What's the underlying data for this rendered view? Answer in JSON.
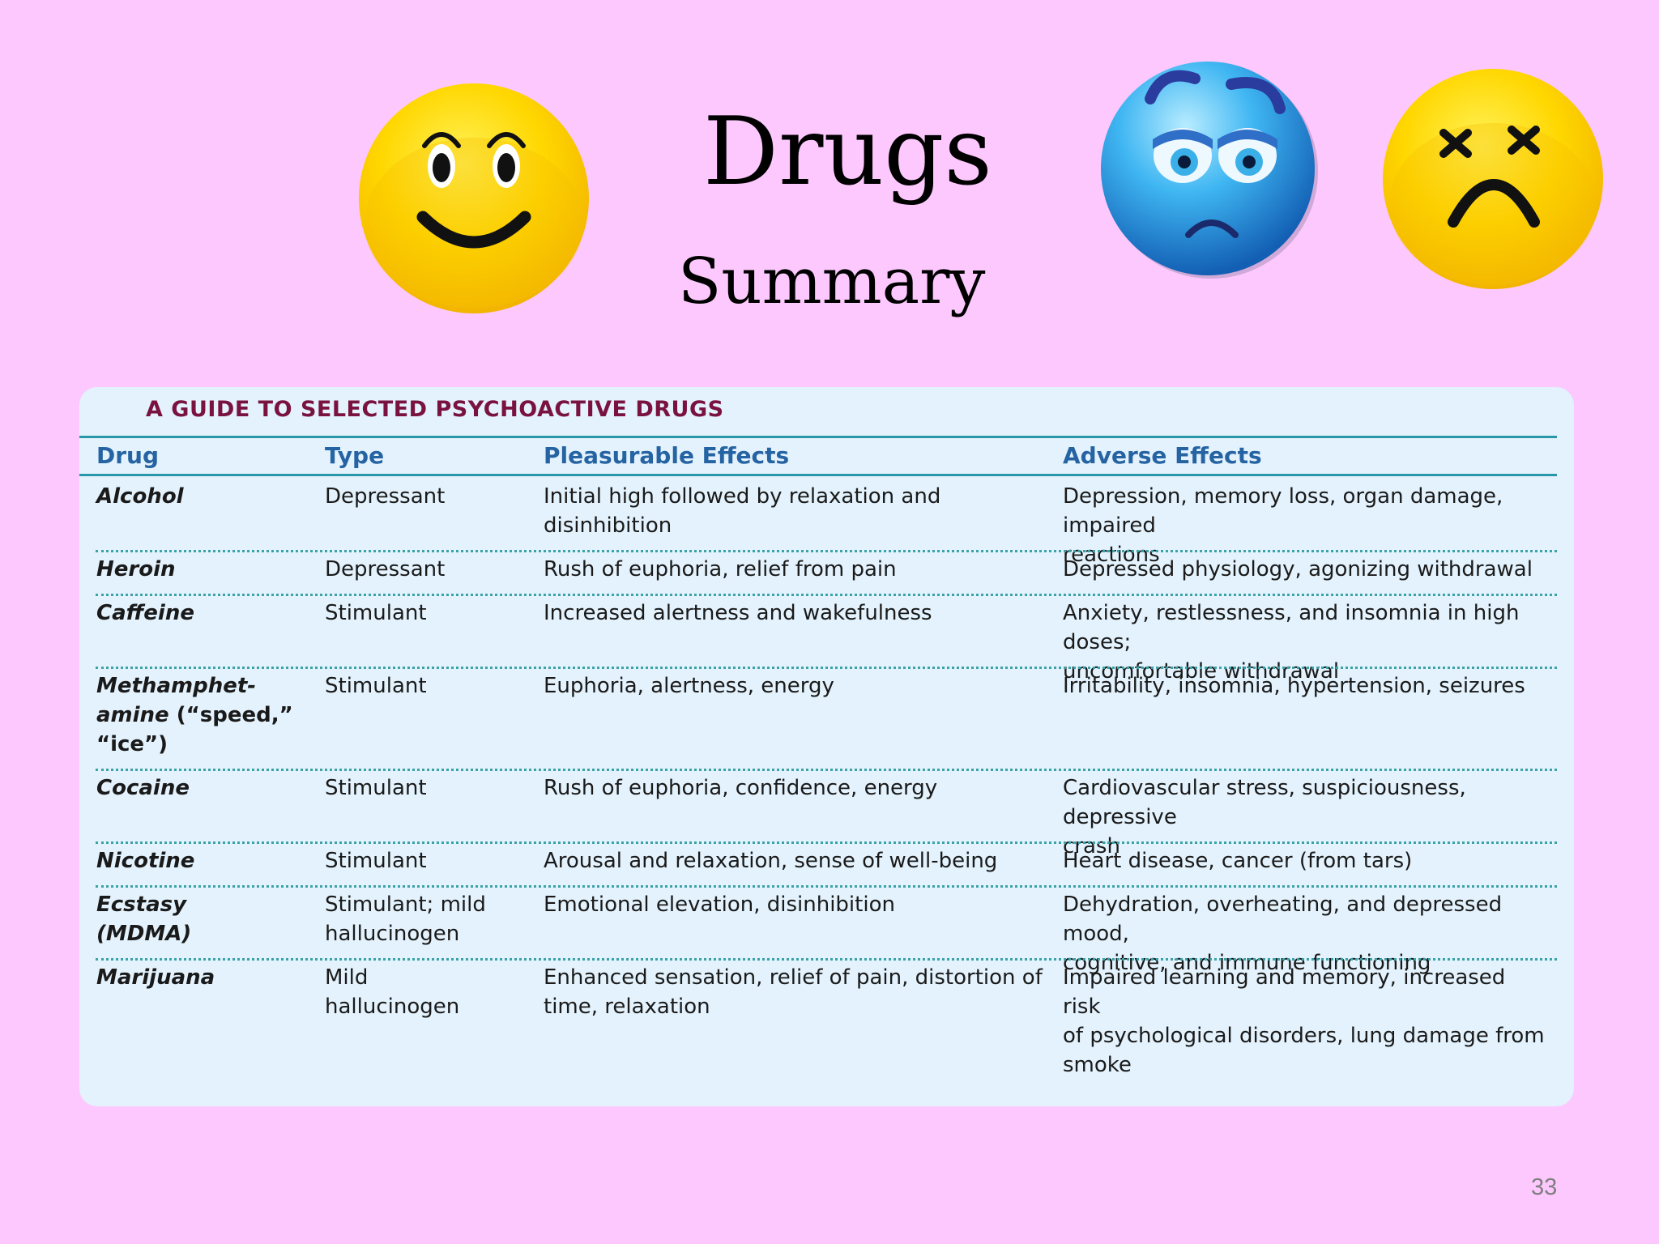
{
  "slide": {
    "title": "Drugs",
    "subtitle": "Summary",
    "page_number": "33"
  },
  "icons": [
    "smiling-face-icon",
    "sick-blue-face-icon",
    "dead-x-eyes-face-icon"
  ],
  "colors": {
    "background": "#fdc8fd",
    "table_background": "#e3f2fc",
    "heading": "#7a1240",
    "column_header": "#2563a3",
    "rule": "#2a97a8"
  },
  "guide": {
    "heading": "A GUIDE TO SELECTED PSYCHOACTIVE DRUGS",
    "columns": [
      "Drug",
      "Type",
      "Pleasurable Effects",
      "Adverse Effects"
    ],
    "rows": [
      {
        "drug_lines": [
          "Alcohol"
        ],
        "type_lines": [
          "Depressant"
        ],
        "pleasurable_lines": [
          "Initial high followed by relaxation and",
          "disinhibition"
        ],
        "adverse_lines": [
          "Depression, memory loss, organ damage, impaired",
          "reactions"
        ]
      },
      {
        "drug_lines": [
          "Heroin"
        ],
        "type_lines": [
          "Depressant"
        ],
        "pleasurable_lines": [
          "Rush of euphoria, relief from pain"
        ],
        "adverse_lines": [
          "Depressed physiology, agonizing withdrawal"
        ]
      },
      {
        "drug_lines": [
          "Caffeine"
        ],
        "type_lines": [
          "Stimulant"
        ],
        "pleasurable_lines": [
          "Increased alertness and wakefulness"
        ],
        "adverse_lines": [
          "Anxiety, restlessness, and insomnia in high doses;",
          "uncomfortable withdrawal"
        ]
      },
      {
        "drug_lines": [
          "Methamphet-",
          "amine",
          "(“speed,”",
          "“ice”)"
        ],
        "type_lines": [
          "Stimulant"
        ],
        "pleasurable_lines": [
          "Euphoria, alertness, energy"
        ],
        "adverse_lines": [
          "Irritability, insomnia, hypertension, seizures"
        ]
      },
      {
        "drug_lines": [
          "Cocaine"
        ],
        "type_lines": [
          "Stimulant"
        ],
        "pleasurable_lines": [
          "Rush of euphoria, confidence, energy"
        ],
        "adverse_lines": [
          "Cardiovascular stress, suspiciousness, depressive",
          "crash"
        ]
      },
      {
        "drug_lines": [
          "Nicotine"
        ],
        "type_lines": [
          "Stimulant"
        ],
        "pleasurable_lines": [
          "Arousal and relaxation, sense of well-being"
        ],
        "adverse_lines": [
          "Heart disease, cancer (from tars)"
        ]
      },
      {
        "drug_lines": [
          "Ecstasy",
          "(MDMA)"
        ],
        "type_lines": [
          "Stimulant; mild",
          "hallucinogen"
        ],
        "pleasurable_lines": [
          "Emotional elevation, disinhibition"
        ],
        "adverse_lines": [
          "Dehydration, overheating, and depressed mood,",
          "cognitive, and immune functioning"
        ]
      },
      {
        "drug_lines": [
          "Marijuana"
        ],
        "type_lines": [
          "Mild",
          "hallucinogen"
        ],
        "pleasurable_lines": [
          "Enhanced sensation, relief of pain, distortion of",
          "time, relaxation"
        ],
        "adverse_lines": [
          "Impaired learning and memory, increased risk",
          "of psychological disorders, lung damage from",
          "smoke"
        ]
      }
    ]
  }
}
